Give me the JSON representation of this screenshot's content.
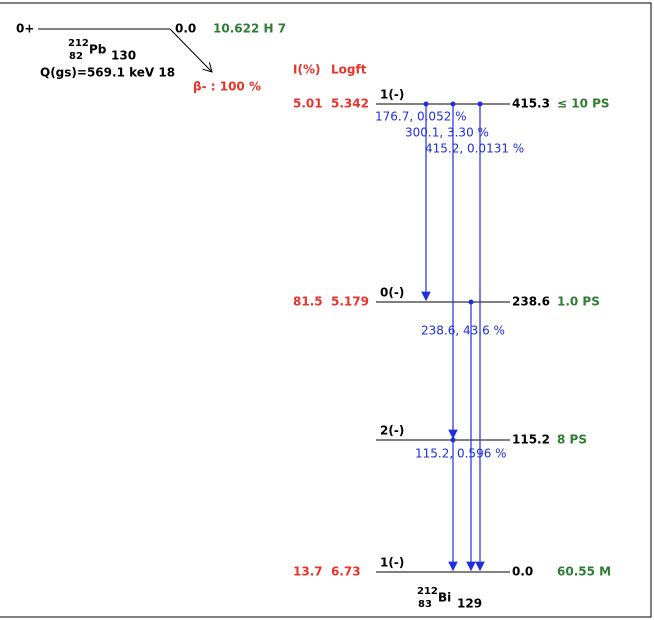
{
  "parent": {
    "spin": "0+",
    "energy": "0.0",
    "halflife": "10.622 H 7",
    "mass": "212",
    "z": "82",
    "symbol": "Pb",
    "n": "130",
    "q": "Q(gs)=569.1 keV 18",
    "decay": "β- : 100 %"
  },
  "headers": {
    "intensity": "I(%)",
    "logft": "Logft"
  },
  "levels": [
    {
      "spin": "1(-)",
      "energy": "415.3",
      "halflife": "≤ 10 PS",
      "intensity": "5.01",
      "logft": "5.342"
    },
    {
      "spin": "0(-)",
      "energy": "238.6",
      "halflife": "1.0 PS",
      "intensity": "81.5",
      "logft": "5.179"
    },
    {
      "spin": "2(-)",
      "energy": "115.2",
      "halflife": "8 PS"
    },
    {
      "spin": "1(-)",
      "energy": "0.0",
      "halflife": "60.55 M",
      "intensity": "13.7",
      "logft": "6.73"
    }
  ],
  "gammas": [
    "176.7, 0.052 %",
    "300.1, 3.30 %",
    "415.2, 0.0131 %",
    "238.6, 43.6 %",
    "115.2, 0.596 %"
  ],
  "daughter": {
    "mass": "212",
    "z": "83",
    "symbol": "Bi",
    "n": "129"
  }
}
